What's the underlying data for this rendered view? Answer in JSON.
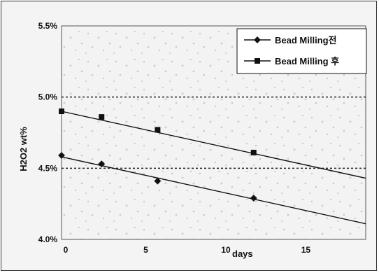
{
  "chart_data": {
    "type": "line",
    "title": "",
    "xlabel": "days",
    "ylabel": "H2O2 wt%",
    "xlim": [
      0,
      19
    ],
    "ylim": [
      4.0,
      5.5
    ],
    "x_ticks": [
      0,
      5,
      10,
      15
    ],
    "y_ticks": [
      "4.0%",
      "4.5%",
      "5.0%",
      "5.5%"
    ],
    "reference_lines": [
      4.5,
      5.0
    ],
    "legend_position": "top-right",
    "series": [
      {
        "name": "Bead Milling전",
        "marker": "diamond",
        "x": [
          0,
          2.5,
          6,
          12
        ],
        "y": [
          4.59,
          4.53,
          4.41,
          4.29
        ],
        "trend": {
          "x": [
            0,
            19
          ],
          "y": [
            4.58,
            4.11
          ]
        }
      },
      {
        "name": "Bead Milling 후",
        "marker": "square",
        "x": [
          0,
          2.5,
          6,
          12
        ],
        "y": [
          4.9,
          4.86,
          4.77,
          4.61
        ],
        "trend": {
          "x": [
            0,
            19
          ],
          "y": [
            4.9,
            4.43
          ]
        }
      }
    ]
  }
}
